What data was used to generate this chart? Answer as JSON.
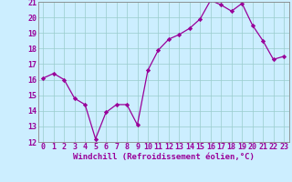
{
  "x": [
    0,
    1,
    2,
    3,
    4,
    5,
    6,
    7,
    8,
    9,
    10,
    11,
    12,
    13,
    14,
    15,
    16,
    17,
    18,
    19,
    20,
    21,
    22,
    23
  ],
  "y": [
    16.1,
    16.4,
    16.0,
    14.8,
    14.4,
    12.2,
    13.9,
    14.4,
    14.4,
    13.1,
    16.6,
    17.9,
    18.6,
    18.9,
    19.3,
    19.9,
    21.1,
    20.8,
    20.4,
    20.9,
    19.5,
    18.5,
    17.3,
    17.5
  ],
  "xlim": [
    -0.5,
    23.5
  ],
  "ylim": [
    12,
    21
  ],
  "yticks": [
    12,
    13,
    14,
    15,
    16,
    17,
    18,
    19,
    20,
    21
  ],
  "xtick_labels": [
    "0",
    "1",
    "2",
    "3",
    "4",
    "5",
    "6",
    "7",
    "8",
    "9",
    "10",
    "11",
    "12",
    "13",
    "14",
    "15",
    "16",
    "17",
    "18",
    "19",
    "20",
    "21",
    "22",
    "23"
  ],
  "xlabel": "Windchill (Refroidissement éolien,°C)",
  "line_color": "#990099",
  "marker_color": "#990099",
  "bg_color": "#cceeff",
  "grid_color": "#99cccc",
  "tick_label_color": "#990099",
  "xlabel_color": "#990099",
  "spine_color": "#888888",
  "tick_fontsize": 6.0,
  "xlabel_fontsize": 6.5
}
